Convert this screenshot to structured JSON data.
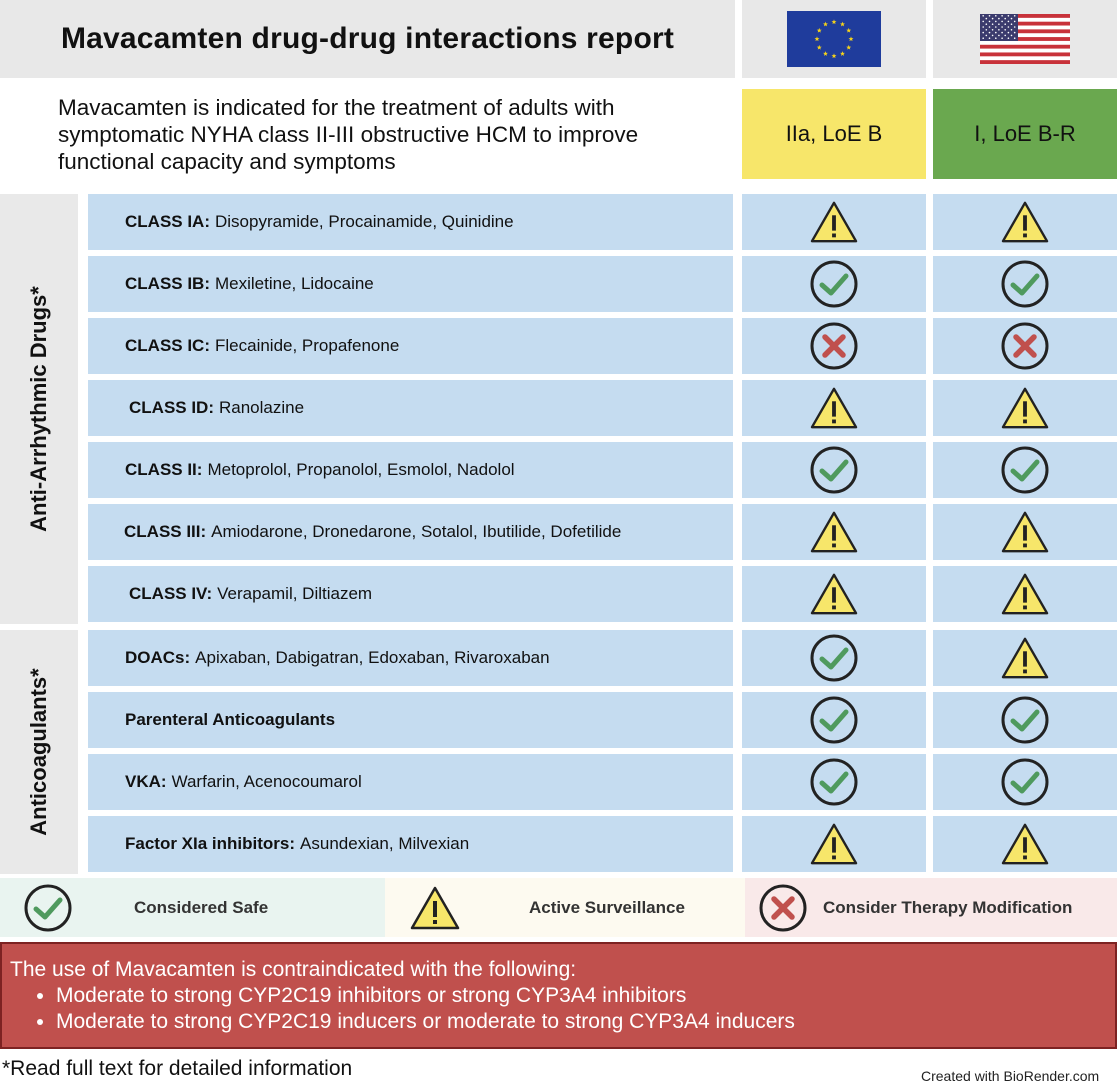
{
  "header": {
    "title": "Mavacamten drug-drug interactions report",
    "flags": [
      "eu-flag-icon",
      "us-flag-icon"
    ]
  },
  "intro": "Mavacamten is indicated for the treatment of adults with symptomatic NYHA class II-III obstructive HCM to improve functional capacity and symptoms",
  "recommendations": {
    "eu": "IIa, LoE B",
    "us": "I, LoE B-R",
    "eu_color": "#f7e66a",
    "us_color": "#6aa84f"
  },
  "groups": {
    "antiarrhythmic": "Anti-Arrhythmic Drugs*",
    "anticoagulants": "Anticoagulants*"
  },
  "rows": [
    {
      "cls": "CLASS IA:",
      "drugs": "Disopyramide, Procainamide, Quinidine",
      "eu": "warning",
      "us": "warning"
    },
    {
      "cls": "CLASS IB:",
      "drugs": "Mexiletine, Lidocaine",
      "eu": "check",
      "us": "check"
    },
    {
      "cls": "CLASS IC:",
      "drugs": "Flecainide, Propafenone",
      "eu": "cross",
      "us": "cross"
    },
    {
      "cls": "CLASS ID:",
      "drugs": "Ranolazine",
      "eu": "warning",
      "us": "warning"
    },
    {
      "cls": "CLASS II:",
      "drugs": "Metoprolol, Propanolol, Esmolol, Nadolol",
      "eu": "check",
      "us": "check"
    },
    {
      "cls": "CLASS III:",
      "drugs": "Amiodarone, Dronedarone, Sotalol, Ibutilide, Dofetilide",
      "eu": "warning",
      "us": "warning"
    },
    {
      "cls": "CLASS IV:",
      "drugs": "Verapamil, Diltiazem",
      "eu": "warning",
      "us": "warning"
    },
    {
      "cls": "DOACs:",
      "drugs": "Apixaban, Dabigatran, Edoxaban, Rivaroxaban",
      "eu": "check",
      "us": "warning"
    },
    {
      "cls": "Parenteral Anticoagulants",
      "drugs": "",
      "eu": "check",
      "us": "check"
    },
    {
      "cls": "VKA:",
      "drugs": "Warfarin, Acenocoumarol",
      "eu": "check",
      "us": "check"
    },
    {
      "cls": "Factor XIa inhibitors:",
      "drugs": "Asundexian, Milvexian",
      "eu": "warning",
      "us": "warning"
    }
  ],
  "legend": {
    "safe": "Considered Safe",
    "surveillance": "Active Surveillance",
    "modify": "Consider Therapy Modification"
  },
  "contraindication": {
    "lead": "The use of Mavacamten is contraindicated with the following:",
    "items": [
      "Moderate to strong CYP2C19 inhibitors or strong CYP3A4 inhibitors",
      "Moderate to strong CYP2C19 inducers or moderate to strong CYP3A4 inducers"
    ]
  },
  "footnote": "*Read full text for detailed information",
  "brand": "Created with BioRender.com",
  "colors": {
    "row_bg": "#c5dcf0",
    "check": "#4f9a5e",
    "cross": "#c0504d",
    "warning_fill": "#f7e66a",
    "contra_bg": "#c0504d"
  }
}
